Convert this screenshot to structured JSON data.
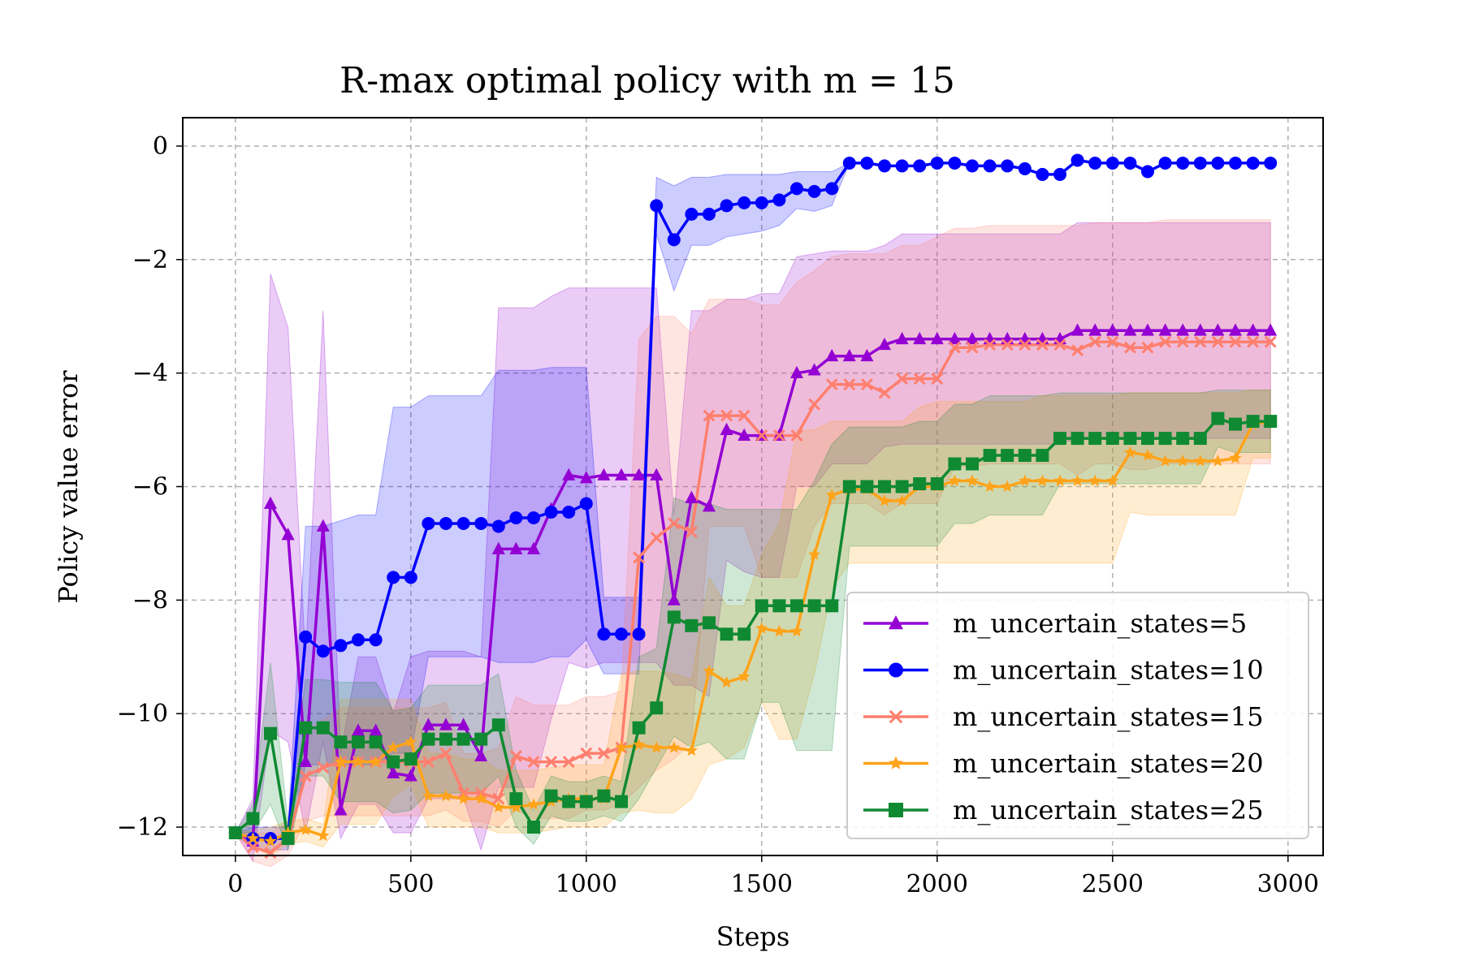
{
  "chart_data": {
    "type": "line",
    "title": "R-max optimal policy with m = 15",
    "xlabel": "Steps",
    "ylabel": "Policy value error",
    "xlim": [
      -150,
      3100
    ],
    "ylim": [
      -12.5,
      0.5
    ],
    "xticks": [
      0,
      500,
      1000,
      1500,
      2000,
      2500,
      3000
    ],
    "xtick_labels": [
      "0",
      "500",
      "1000",
      "1500",
      "2000",
      "2500",
      "3000"
    ],
    "yticks": [
      0,
      -2,
      -4,
      -6,
      -8,
      -10,
      -12
    ],
    "ytick_labels": [
      "0",
      "−2",
      "−4",
      "−6",
      "−8",
      "−10",
      "−12"
    ],
    "grid": true,
    "legend_position": "lower-right",
    "x": [
      0,
      50,
      100,
      150,
      200,
      250,
      300,
      350,
      400,
      450,
      500,
      550,
      600,
      650,
      700,
      750,
      800,
      850,
      900,
      950,
      1000,
      1050,
      1100,
      1150,
      1200,
      1250,
      1300,
      1350,
      1400,
      1450,
      1500,
      1550,
      1600,
      1650,
      1700,
      1750,
      1800,
      1850,
      1900,
      1950,
      2000,
      2050,
      2100,
      2150,
      2200,
      2250,
      2300,
      2350,
      2400,
      2450,
      2500,
      2550,
      2600,
      2650,
      2700,
      2750,
      2800,
      2850,
      2900,
      2950
    ],
    "series": [
      {
        "name": "m_uncertain_states=5",
        "color": "#9400d3",
        "marker": "triangle",
        "values": [
          -12.1,
          -12.25,
          -6.3,
          -6.85,
          -10.85,
          -6.7,
          -11.7,
          -10.3,
          -10.3,
          -11.05,
          -11.1,
          -10.2,
          -10.2,
          -10.2,
          -10.75,
          -7.1,
          -7.1,
          -7.1,
          -6.4,
          -5.8,
          -5.85,
          -5.8,
          -5.8,
          -5.8,
          -5.8,
          -8.0,
          -6.2,
          -6.35,
          -5.0,
          -5.1,
          -5.1,
          -5.1,
          -4.0,
          -3.95,
          -3.7,
          -3.7,
          -3.7,
          -3.5,
          -3.4,
          -3.4,
          -3.4,
          -3.4,
          -3.4,
          -3.4,
          -3.4,
          -3.4,
          -3.4,
          -3.4,
          -3.25,
          -3.25,
          -3.25,
          -3.25,
          -3.25,
          -3.25,
          -3.25,
          -3.25,
          -3.25,
          -3.25,
          -3.25,
          -3.25
        ],
        "upper": [
          -12.1,
          -11.5,
          -2.25,
          -3.2,
          -9.0,
          -2.9,
          -10.7,
          -9.0,
          -9.0,
          -10.0,
          -9.0,
          -8.9,
          -8.9,
          -8.9,
          -9.0,
          -2.85,
          -2.85,
          -2.85,
          -2.65,
          -2.5,
          -2.5,
          -2.5,
          -2.5,
          -2.5,
          -2.5,
          -6.5,
          -2.9,
          -2.9,
          -2.7,
          -2.7,
          -2.6,
          -2.6,
          -1.95,
          -1.9,
          -1.85,
          -1.85,
          -1.85,
          -1.75,
          -1.55,
          -1.55,
          -1.55,
          -1.55,
          -1.55,
          -1.55,
          -1.55,
          -1.55,
          -1.55,
          -1.55,
          -1.35,
          -1.35,
          -1.35,
          -1.35,
          -1.35,
          -1.35,
          -1.35,
          -1.35,
          -1.35,
          -1.35,
          -1.35,
          -1.35
        ],
        "lower": [
          -12.1,
          -12.6,
          -10.3,
          -10.5,
          -12.1,
          -10.5,
          -12.2,
          -11.6,
          -11.6,
          -12.1,
          -12.1,
          -11.5,
          -11.5,
          -11.5,
          -12.4,
          -11.3,
          -11.3,
          -11.3,
          -10.1,
          -9.1,
          -9.2,
          -9.1,
          -9.1,
          -9.1,
          -9.1,
          -9.5,
          -9.5,
          -9.7,
          -7.3,
          -7.5,
          -7.6,
          -7.6,
          -6.0,
          -6.0,
          -5.6,
          -5.6,
          -5.6,
          -5.3,
          -5.25,
          -5.25,
          -5.25,
          -5.25,
          -5.25,
          -5.25,
          -5.25,
          -5.25,
          -5.25,
          -5.25,
          -5.15,
          -5.15,
          -5.15,
          -5.15,
          -5.15,
          -5.15,
          -5.15,
          -5.15,
          -5.15,
          -5.15,
          -5.15,
          -5.15
        ]
      },
      {
        "name": "m_uncertain_states=10",
        "color": "#0000ff",
        "marker": "circle",
        "values": [
          -12.1,
          -12.2,
          -12.2,
          -12.2,
          -8.65,
          -8.9,
          -8.8,
          -8.7,
          -8.7,
          -7.6,
          -7.6,
          -6.65,
          -6.65,
          -6.65,
          -6.65,
          -6.7,
          -6.55,
          -6.55,
          -6.45,
          -6.45,
          -6.3,
          -8.6,
          -8.6,
          -8.6,
          -1.05,
          -1.65,
          -1.2,
          -1.2,
          -1.05,
          -1.0,
          -1.0,
          -0.95,
          -0.75,
          -0.8,
          -0.75,
          -0.3,
          -0.3,
          -0.35,
          -0.35,
          -0.35,
          -0.3,
          -0.3,
          -0.35,
          -0.35,
          -0.35,
          -0.4,
          -0.5,
          -0.5,
          -0.25,
          -0.3,
          -0.3,
          -0.3,
          -0.45,
          -0.3,
          -0.3,
          -0.3,
          -0.3,
          -0.3,
          -0.3,
          -0.3
        ],
        "upper": [
          -12.1,
          -12.0,
          -12.0,
          -12.0,
          -6.7,
          -6.7,
          -6.6,
          -6.5,
          -6.5,
          -4.6,
          -4.6,
          -4.4,
          -4.4,
          -4.4,
          -4.4,
          -3.95,
          -3.95,
          -3.95,
          -3.9,
          -3.9,
          -3.9,
          -7.95,
          -7.95,
          -7.95,
          -0.55,
          -0.7,
          -0.55,
          -0.55,
          -0.5,
          -0.5,
          -0.5,
          -0.5,
          -0.45,
          -0.45,
          -0.45,
          -0.3,
          -0.3,
          -0.35,
          -0.35,
          -0.35,
          -0.3,
          -0.3,
          -0.35,
          -0.35,
          -0.35,
          -0.4,
          -0.5,
          -0.5,
          -0.25,
          -0.3,
          -0.3,
          -0.3,
          -0.45,
          -0.3,
          -0.3,
          -0.3,
          -0.3,
          -0.3,
          -0.3,
          -0.3
        ],
        "lower": [
          -12.1,
          -12.4,
          -12.4,
          -12.4,
          -10.9,
          -10.9,
          -10.9,
          -10.9,
          -10.9,
          -10.7,
          -10.7,
          -9.0,
          -9.0,
          -9.0,
          -9.0,
          -9.1,
          -9.1,
          -9.1,
          -9.0,
          -9.0,
          -8.7,
          -9.3,
          -9.3,
          -9.3,
          -1.55,
          -2.55,
          -1.75,
          -1.75,
          -1.6,
          -1.55,
          -1.5,
          -1.4,
          -1.1,
          -1.15,
          -1.05,
          -0.3,
          -0.3,
          -0.35,
          -0.35,
          -0.35,
          -0.3,
          -0.3,
          -0.35,
          -0.35,
          -0.35,
          -0.4,
          -0.5,
          -0.5,
          -0.25,
          -0.3,
          -0.3,
          -0.3,
          -0.45,
          -0.3,
          -0.3,
          -0.3,
          -0.3,
          -0.3,
          -0.3,
          -0.3
        ]
      },
      {
        "name": "m_uncertain_states=15",
        "color": "#ff7f6e",
        "marker": "x",
        "values": [
          -12.1,
          -12.35,
          -12.45,
          -12.2,
          -11.1,
          -10.95,
          -10.85,
          -10.85,
          -10.85,
          -10.85,
          -10.85,
          -10.85,
          -10.7,
          -11.4,
          -11.4,
          -11.5,
          -10.75,
          -10.85,
          -10.85,
          -10.85,
          -10.7,
          -10.7,
          -10.6,
          -7.25,
          -6.9,
          -6.65,
          -6.8,
          -4.75,
          -4.75,
          -4.75,
          -5.1,
          -5.1,
          -5.1,
          -4.55,
          -4.2,
          -4.2,
          -4.2,
          -4.35,
          -4.1,
          -4.1,
          -4.1,
          -3.55,
          -3.55,
          -3.5,
          -3.5,
          -3.5,
          -3.5,
          -3.5,
          -3.6,
          -3.45,
          -3.45,
          -3.55,
          -3.55,
          -3.45,
          -3.45,
          -3.45,
          -3.45,
          -3.45,
          -3.45,
          -3.45
        ],
        "upper": [
          -12.1,
          -12.1,
          -12.1,
          -11.9,
          -10.3,
          -10.1,
          -9.9,
          -9.9,
          -9.9,
          -9.9,
          -9.9,
          -9.9,
          -9.8,
          -10.7,
          -10.7,
          -10.6,
          -9.7,
          -9.85,
          -9.85,
          -9.85,
          -9.7,
          -9.7,
          -9.6,
          -3.4,
          -3.0,
          -3.0,
          -3.3,
          -2.7,
          -2.7,
          -2.7,
          -2.8,
          -2.8,
          -2.4,
          -2.2,
          -1.95,
          -1.9,
          -1.9,
          -1.9,
          -1.75,
          -1.75,
          -1.6,
          -1.45,
          -1.45,
          -1.4,
          -1.4,
          -1.4,
          -1.4,
          -1.4,
          -1.4,
          -1.35,
          -1.35,
          -1.35,
          -1.35,
          -1.3,
          -1.3,
          -1.3,
          -1.3,
          -1.3,
          -1.3,
          -1.3
        ],
        "lower": [
          -12.1,
          -12.6,
          -12.7,
          -12.5,
          -11.9,
          -11.8,
          -11.8,
          -11.8,
          -11.8,
          -11.8,
          -11.8,
          -11.8,
          -11.7,
          -11.9,
          -11.9,
          -12.0,
          -11.7,
          -11.85,
          -11.85,
          -11.85,
          -11.7,
          -11.7,
          -11.6,
          -11.3,
          -11.0,
          -10.8,
          -10.5,
          -6.7,
          -6.7,
          -6.7,
          -7.6,
          -7.6,
          -7.6,
          -6.7,
          -6.3,
          -6.3,
          -6.3,
          -6.5,
          -6.3,
          -6.3,
          -6.3,
          -5.65,
          -5.65,
          -5.6,
          -5.6,
          -5.6,
          -5.6,
          -5.6,
          -5.8,
          -5.6,
          -5.6,
          -5.7,
          -5.7,
          -5.6,
          -5.6,
          -5.6,
          -5.6,
          -5.6,
          -5.6,
          -5.6
        ]
      },
      {
        "name": "m_uncertain_states=20",
        "color": "#ffa31a",
        "marker": "star",
        "values": [
          -12.1,
          -12.2,
          -12.25,
          -12.1,
          -12.05,
          -12.15,
          -10.85,
          -10.85,
          -10.85,
          -10.6,
          -10.5,
          -11.45,
          -11.45,
          -11.5,
          -11.5,
          -11.65,
          -11.65,
          -11.6,
          -11.55,
          -11.5,
          -11.5,
          -11.5,
          -10.6,
          -10.55,
          -10.6,
          -10.6,
          -10.65,
          -9.25,
          -9.45,
          -9.35,
          -8.5,
          -8.55,
          -8.55,
          -7.2,
          -6.15,
          -6.05,
          -6.05,
          -6.25,
          -6.25,
          -6.0,
          -6.0,
          -5.9,
          -5.9,
          -6.0,
          -6.0,
          -5.9,
          -5.9,
          -5.9,
          -5.9,
          -5.9,
          -5.9,
          -5.4,
          -5.45,
          -5.55,
          -5.55,
          -5.55,
          -5.55,
          -5.5,
          -4.9,
          -4.85
        ],
        "upper": [
          -12.1,
          -12.05,
          -12.0,
          -11.9,
          -11.85,
          -11.95,
          -9.75,
          -9.75,
          -9.75,
          -9.75,
          -9.75,
          -10.7,
          -10.7,
          -10.8,
          -10.8,
          -11.0,
          -11.0,
          -11.0,
          -10.95,
          -10.9,
          -10.9,
          -10.9,
          -9.3,
          -9.25,
          -9.25,
          -9.3,
          -9.4,
          -7.6,
          -8.1,
          -8.1,
          -7.2,
          -6.65,
          -5.0,
          -5.0,
          -4.85,
          -4.85,
          -4.85,
          -4.85,
          -4.85,
          -4.6,
          -4.5,
          -4.5,
          -4.5,
          -4.5,
          -4.5,
          -4.5,
          -4.4,
          -4.4,
          -4.4,
          -4.4,
          -4.4,
          -4.35,
          -4.35,
          -4.35,
          -4.35,
          -4.35,
          -4.35,
          -4.35,
          -4.3,
          -4.3
        ],
        "lower": [
          -12.1,
          -12.35,
          -12.5,
          -12.3,
          -12.25,
          -12.35,
          -11.95,
          -11.95,
          -11.95,
          -11.45,
          -11.25,
          -12.0,
          -12.0,
          -12.0,
          -12.0,
          -12.1,
          -12.1,
          -12.1,
          -12.05,
          -12.0,
          -12.0,
          -12.0,
          -11.75,
          -11.7,
          -11.75,
          -11.75,
          -11.5,
          -10.9,
          -10.8,
          -10.6,
          -9.8,
          -10.45,
          -10.45,
          -9.3,
          -7.8,
          -7.35,
          -7.35,
          -7.35,
          -7.35,
          -7.35,
          -7.35,
          -7.35,
          -7.35,
          -7.35,
          -7.35,
          -7.35,
          -7.35,
          -7.35,
          -7.35,
          -7.35,
          -7.35,
          -6.45,
          -6.5,
          -6.5,
          -6.5,
          -6.5,
          -6.5,
          -6.5,
          -5.5,
          -5.5
        ]
      },
      {
        "name": "m_uncertain_states=25",
        "color": "#0f8a32",
        "marker": "square",
        "values": [
          -12.1,
          -11.85,
          -10.35,
          -12.2,
          -10.25,
          -10.25,
          -10.5,
          -10.5,
          -10.5,
          -10.85,
          -10.8,
          -10.45,
          -10.45,
          -10.45,
          -10.45,
          -10.2,
          -11.5,
          -12.0,
          -11.45,
          -11.55,
          -11.55,
          -11.45,
          -11.55,
          -10.25,
          -9.9,
          -8.3,
          -8.45,
          -8.4,
          -8.6,
          -8.6,
          -8.1,
          -8.1,
          -8.1,
          -8.1,
          -8.1,
          -6.0,
          -6.0,
          -6.0,
          -6.0,
          -5.95,
          -5.95,
          -5.6,
          -5.6,
          -5.45,
          -5.45,
          -5.45,
          -5.45,
          -5.15,
          -5.15,
          -5.15,
          -5.15,
          -5.15,
          -5.15,
          -5.15,
          -5.15,
          -5.15,
          -4.8,
          -4.9,
          -4.85,
          -4.85
        ],
        "upper": [
          -12.1,
          -11.6,
          -9.1,
          -11.9,
          -9.4,
          -9.4,
          -9.45,
          -9.45,
          -9.45,
          -9.95,
          -9.9,
          -9.5,
          -9.5,
          -9.5,
          -9.5,
          -9.3,
          -11.0,
          -11.7,
          -11.1,
          -11.2,
          -11.2,
          -11.1,
          -11.2,
          -9.0,
          -8.85,
          -6.2,
          -6.3,
          -6.3,
          -6.4,
          -6.4,
          -6.4,
          -6.4,
          -6.4,
          -5.9,
          -5.25,
          -4.95,
          -4.95,
          -4.95,
          -4.95,
          -4.85,
          -4.85,
          -4.55,
          -4.55,
          -4.4,
          -4.4,
          -4.4,
          -4.4,
          -4.35,
          -4.35,
          -4.35,
          -4.35,
          -4.35,
          -4.35,
          -4.35,
          -4.35,
          -4.35,
          -4.3,
          -4.3,
          -4.3,
          -4.3
        ],
        "lower": [
          -12.1,
          -12.1,
          -11.6,
          -12.4,
          -11.1,
          -11.1,
          -11.55,
          -11.55,
          -11.55,
          -11.75,
          -11.7,
          -11.4,
          -11.4,
          -11.4,
          -11.4,
          -11.1,
          -12.0,
          -12.3,
          -11.8,
          -11.9,
          -11.9,
          -11.8,
          -11.9,
          -11.5,
          -10.95,
          -10.4,
          -10.6,
          -10.5,
          -10.8,
          -10.8,
          -9.8,
          -9.8,
          -10.65,
          -10.65,
          -10.65,
          -7.05,
          -7.05,
          -7.05,
          -7.05,
          -7.05,
          -7.05,
          -6.65,
          -6.65,
          -6.5,
          -6.5,
          -6.5,
          -6.5,
          -5.95,
          -5.95,
          -5.95,
          -5.95,
          -5.95,
          -5.95,
          -5.95,
          -5.95,
          -5.95,
          -5.3,
          -5.4,
          -5.4,
          -5.4
        ]
      }
    ]
  }
}
